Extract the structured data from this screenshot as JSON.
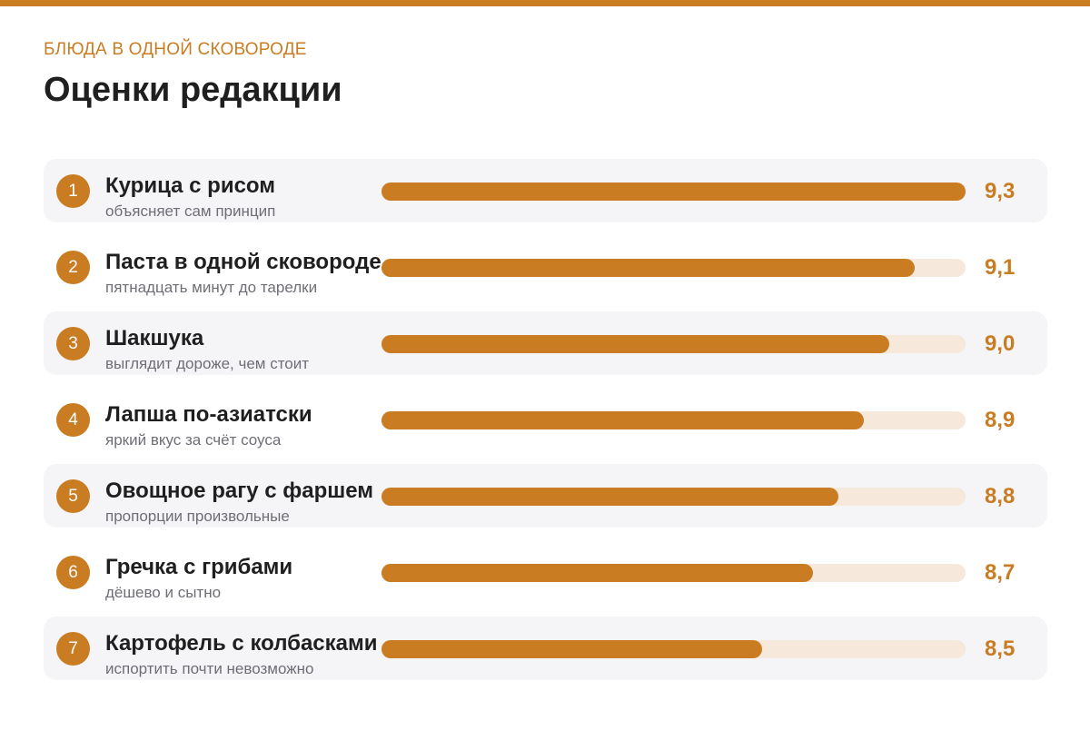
{
  "header": {
    "kicker": "БЛЮДА В ОДНОЙ СКОВОРОДЕ",
    "title": "Оценки редакции"
  },
  "colors": {
    "accent": "#c97c22",
    "track": "#f6e8db",
    "row_shade": "#f5f5f8"
  },
  "chart_data": {
    "type": "bar",
    "orientation": "horizontal",
    "title": "Оценки редакции",
    "categories": [
      "Курица с рисом",
      "Паста в одной сковороде",
      "Шакшука",
      "Лапша по-азиатски",
      "Овощное рагу с фаршем",
      "Гречка с грибами",
      "Картофель с колбасками"
    ],
    "values": [
      9.3,
      9.1,
      9.0,
      8.9,
      8.8,
      8.7,
      8.5
    ],
    "xlim": [
      7.0,
      9.3
    ],
    "grid": false,
    "items": [
      {
        "rank": "1",
        "name": "Курица с рисом",
        "note": "объясняет сам принцип",
        "score": 9.3,
        "score_label": "9,3"
      },
      {
        "rank": "2",
        "name": "Паста в одной сковороде",
        "note": "пятнадцать минут до тарелки",
        "score": 9.1,
        "score_label": "9,1"
      },
      {
        "rank": "3",
        "name": "Шакшука",
        "note": "выглядит дороже, чем стоит",
        "score": 9.0,
        "score_label": "9,0"
      },
      {
        "rank": "4",
        "name": "Лапша по-азиатски",
        "note": "яркий вкус за счёт соуса",
        "score": 8.9,
        "score_label": "8,9"
      },
      {
        "rank": "5",
        "name": "Овощное рагу с фаршем",
        "note": "пропорции произвольные",
        "score": 8.8,
        "score_label": "8,8"
      },
      {
        "rank": "6",
        "name": "Гречка с грибами",
        "note": "дёшево и сытно",
        "score": 8.7,
        "score_label": "8,7"
      },
      {
        "rank": "7",
        "name": "Картофель с колбасками",
        "note": "испортить почти невозможно",
        "score": 8.5,
        "score_label": "8,5"
      }
    ]
  }
}
